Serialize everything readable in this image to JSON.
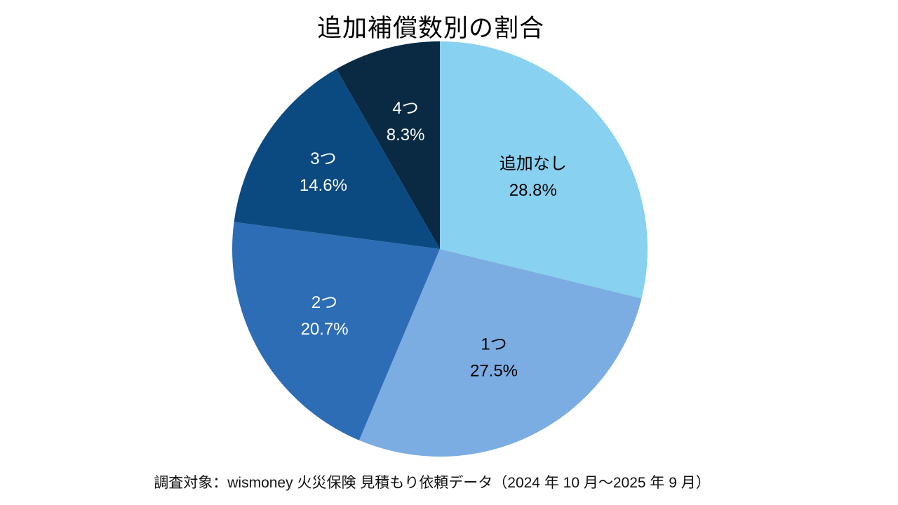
{
  "chart_data": {
    "type": "pie",
    "title": "追加補償数別の割合",
    "footer": "調査対象：wismoney 火災保険 見積もり依頼データ（2024 年 10 月～2025 年 9 月）",
    "categories": [
      "追加なし",
      "1つ",
      "2つ",
      "3つ",
      "4つ"
    ],
    "values": [
      28.8,
      27.5,
      20.7,
      14.6,
      8.3
    ],
    "segments": [
      {
        "label": "追加なし",
        "value": 28.8,
        "display": "28.8%",
        "color": "#89D1F0",
        "label_color": "#000000"
      },
      {
        "label": "1つ",
        "value": 27.5,
        "display": "27.5%",
        "color": "#7BADE3",
        "label_color": "#000000"
      },
      {
        "label": "2つ",
        "value": 20.7,
        "display": "20.7%",
        "color": "#2C6DB6",
        "label_color": "#FFFFFF"
      },
      {
        "label": "3つ",
        "value": 14.6,
        "display": "14.6%",
        "color": "#0B4A81",
        "label_color": "#FFFFFF"
      },
      {
        "label": "4つ",
        "value": 8.3,
        "display": "8.3%",
        "color": "#0A2A44",
        "label_color": "#FFFFFF"
      }
    ],
    "start_angle_deg": 0,
    "direction": "clockwise",
    "legend": "none",
    "labels_inside": true
  }
}
